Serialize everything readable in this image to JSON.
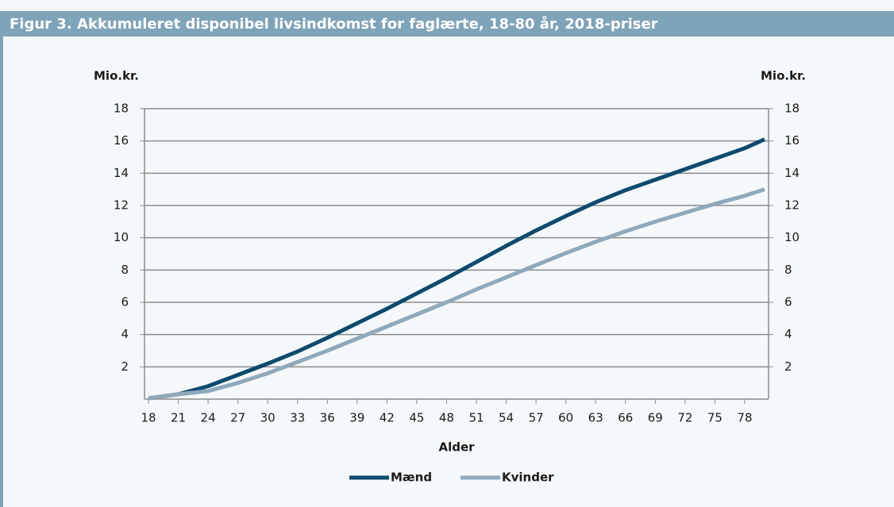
{
  "chart_data": {
    "type": "line",
    "title": "Figur 3. Akkumuleret disponibel livsindkomst for faglærte, 18-80 år, 2018-priser",
    "y_label": "Mio.kr.",
    "y2_label": "Mio.kr.",
    "x_label": "Alder",
    "x": [
      18,
      21,
      24,
      27,
      30,
      33,
      36,
      39,
      42,
      45,
      48,
      51,
      54,
      57,
      60,
      63,
      66,
      69,
      72,
      75,
      78,
      80
    ],
    "xlim": [
      17.6,
      80.4
    ],
    "xticks": [
      18,
      21,
      24,
      27,
      30,
      33,
      36,
      39,
      42,
      45,
      48,
      51,
      54,
      57,
      60,
      63,
      66,
      69,
      72,
      75,
      78
    ],
    "ylim": [
      0,
      18
    ],
    "yticks": [
      2,
      4,
      6,
      8,
      10,
      12,
      14,
      16,
      18
    ],
    "y2lim": [
      0,
      18
    ],
    "y2ticks": [
      2,
      4,
      6,
      8,
      10,
      12,
      14,
      16,
      18
    ],
    "grid": true,
    "series": [
      {
        "name": "Mænd",
        "color": "#0d4a6e",
        "values": [
          0.05,
          0.3,
          0.8,
          1.5,
          2.2,
          2.95,
          3.8,
          4.7,
          5.6,
          6.55,
          7.5,
          8.5,
          9.5,
          10.45,
          11.35,
          12.2,
          12.95,
          13.6,
          14.25,
          14.9,
          15.55,
          16.1
        ]
      },
      {
        "name": "Kvinder",
        "color": "#8fa9bb",
        "values": [
          0.05,
          0.3,
          0.5,
          1.0,
          1.6,
          2.3,
          3.0,
          3.75,
          4.5,
          5.25,
          6.0,
          6.8,
          7.55,
          8.3,
          9.05,
          9.75,
          10.4,
          11.0,
          11.55,
          12.1,
          12.6,
          13.0
        ]
      }
    ]
  }
}
